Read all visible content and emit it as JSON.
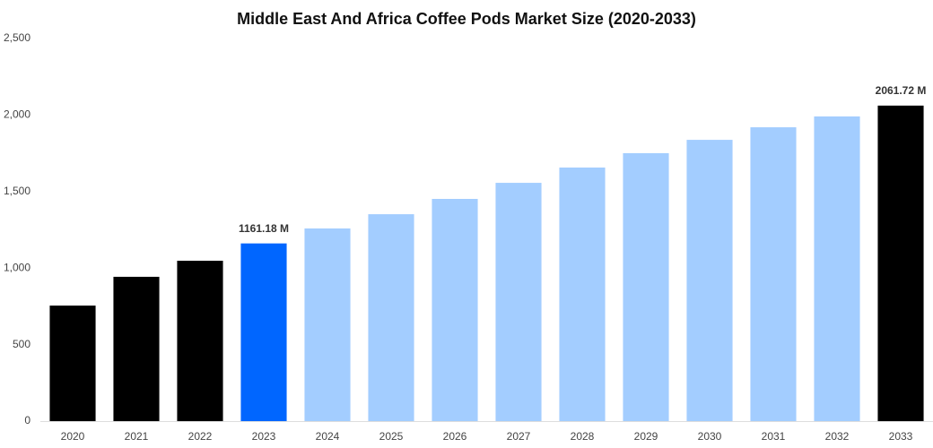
{
  "chart_data": {
    "type": "bar",
    "title": "Middle East And Africa Coffee Pods Market Size (2020-2033)",
    "categories": [
      "2020",
      "2021",
      "2022",
      "2023",
      "2024",
      "2025",
      "2026",
      "2027",
      "2028",
      "2029",
      "2030",
      "2031",
      "2032",
      "2033"
    ],
    "values": [
      755,
      943,
      1048,
      1161.18,
      1259,
      1352,
      1452,
      1557,
      1657,
      1751,
      1838,
      1920,
      1991,
      2061.72
    ],
    "value_labels": [
      null,
      null,
      null,
      "1161.18 M",
      null,
      null,
      null,
      null,
      null,
      null,
      null,
      null,
      null,
      "2061.72 M"
    ],
    "colors": [
      "#000000",
      "#000000",
      "#000000",
      "#0066ff",
      "#a3cdff",
      "#a3cdff",
      "#a3cdff",
      "#a3cdff",
      "#a3cdff",
      "#a3cdff",
      "#a3cdff",
      "#a3cdff",
      "#a3cdff",
      "#000000"
    ],
    "ylim": [
      0,
      2500
    ],
    "yticks": [
      0,
      500,
      {
        "value": 1000,
        "label": "1,000"
      },
      {
        "value": 1500,
        "label": "1,500"
      },
      {
        "value": 2000,
        "label": "2,000"
      },
      {
        "value": 2500,
        "label": "2,500"
      }
    ],
    "grid": false
  }
}
